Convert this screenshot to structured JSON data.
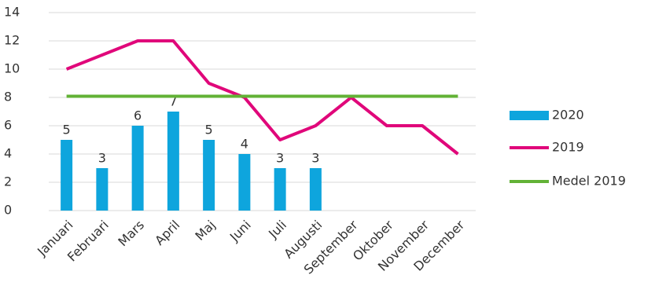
{
  "chart_data": {
    "type": "bar",
    "categories": [
      "Januari",
      "Februari",
      "Mars",
      "April",
      "Maj",
      "Juni",
      "Juli",
      "Augusti",
      "September",
      "Oktober",
      "November",
      "December"
    ],
    "series": [
      {
        "name": "2020",
        "type": "bar",
        "color": "#0ea5dd",
        "values": [
          5,
          3,
          6,
          7,
          5,
          4,
          3,
          3,
          null,
          null,
          null,
          null
        ],
        "data_labels": true
      },
      {
        "name": "2019",
        "type": "line",
        "color": "#e0077a",
        "values": [
          10,
          11,
          12,
          12,
          9,
          8,
          5,
          6,
          8,
          6,
          6,
          4
        ]
      },
      {
        "name": "Medel 2019",
        "type": "line",
        "color": "#62b236",
        "values": [
          8.08,
          8.08,
          8.08,
          8.08,
          8.08,
          8.08,
          8.08,
          8.08,
          8.08,
          8.08,
          8.08,
          8.08
        ]
      }
    ],
    "ylim": [
      0,
      14
    ],
    "yticks": [
      0,
      2,
      4,
      6,
      8,
      10,
      12,
      14
    ],
    "grid": true,
    "legend": "right"
  }
}
